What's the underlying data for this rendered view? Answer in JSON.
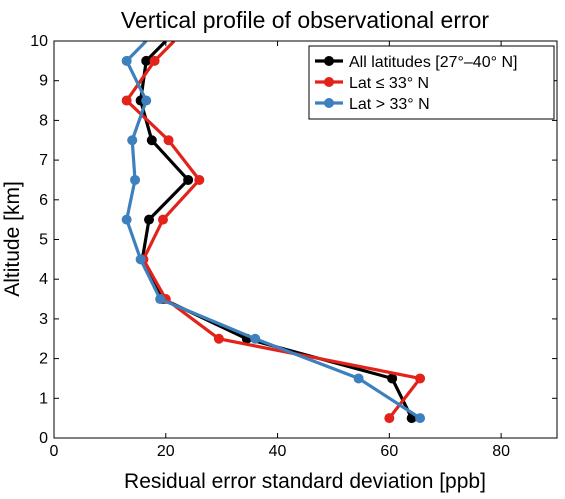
{
  "chart_data": {
    "type": "line",
    "title": "Vertical profile of observational error",
    "xlabel": "Residual error standard deviation [ppb]",
    "ylabel": "Altitude [km]",
    "xlim": [
      0,
      90
    ],
    "ylim": [
      0,
      10
    ],
    "xticks": [
      "0",
      "20",
      "40",
      "60",
      "80"
    ],
    "yticks": [
      "0",
      "1",
      "2",
      "3",
      "4",
      "5",
      "6",
      "7",
      "8",
      "9",
      "10"
    ],
    "grid": false,
    "legend_position": "top-right",
    "series": [
      {
        "name": "All latitudes [27°–40° N]",
        "color": "#000000",
        "points": [
          {
            "x": 64.0,
            "y": 0.5
          },
          {
            "x": 60.5,
            "y": 1.5
          },
          {
            "x": 34.5,
            "y": 2.5
          },
          {
            "x": 19.5,
            "y": 3.5
          },
          {
            "x": 15.8,
            "y": 4.5
          },
          {
            "x": 17.0,
            "y": 5.5
          },
          {
            "x": 24.0,
            "y": 6.5
          },
          {
            "x": 17.5,
            "y": 7.5
          },
          {
            "x": 15.5,
            "y": 8.5
          },
          {
            "x": 16.5,
            "y": 9.5
          },
          {
            "x": 20.0,
            "y": 10.0
          }
        ]
      },
      {
        "name": "Lat ≤ 33° N",
        "color": "#e32219",
        "points": [
          {
            "x": 60.0,
            "y": 0.5
          },
          {
            "x": 65.5,
            "y": 1.5
          },
          {
            "x": 29.5,
            "y": 2.5
          },
          {
            "x": 20.0,
            "y": 3.5
          },
          {
            "x": 16.0,
            "y": 4.5
          },
          {
            "x": 19.5,
            "y": 5.5
          },
          {
            "x": 26.0,
            "y": 6.5
          },
          {
            "x": 20.5,
            "y": 7.5
          },
          {
            "x": 13.0,
            "y": 8.5
          },
          {
            "x": 18.0,
            "y": 9.5
          },
          {
            "x": 21.5,
            "y": 10.0
          }
        ]
      },
      {
        "name": "Lat > 33° N",
        "color": "#3d80bd",
        "points": [
          {
            "x": 65.5,
            "y": 0.5
          },
          {
            "x": 54.5,
            "y": 1.5
          },
          {
            "x": 36.0,
            "y": 2.5
          },
          {
            "x": 19.0,
            "y": 3.5
          },
          {
            "x": 15.5,
            "y": 4.5
          },
          {
            "x": 13.0,
            "y": 5.5
          },
          {
            "x": 14.5,
            "y": 6.5
          },
          {
            "x": 14.0,
            "y": 7.5
          },
          {
            "x": 16.5,
            "y": 8.5
          },
          {
            "x": 13.0,
            "y": 9.5
          },
          {
            "x": 16.5,
            "y": 10.0
          }
        ]
      }
    ]
  }
}
